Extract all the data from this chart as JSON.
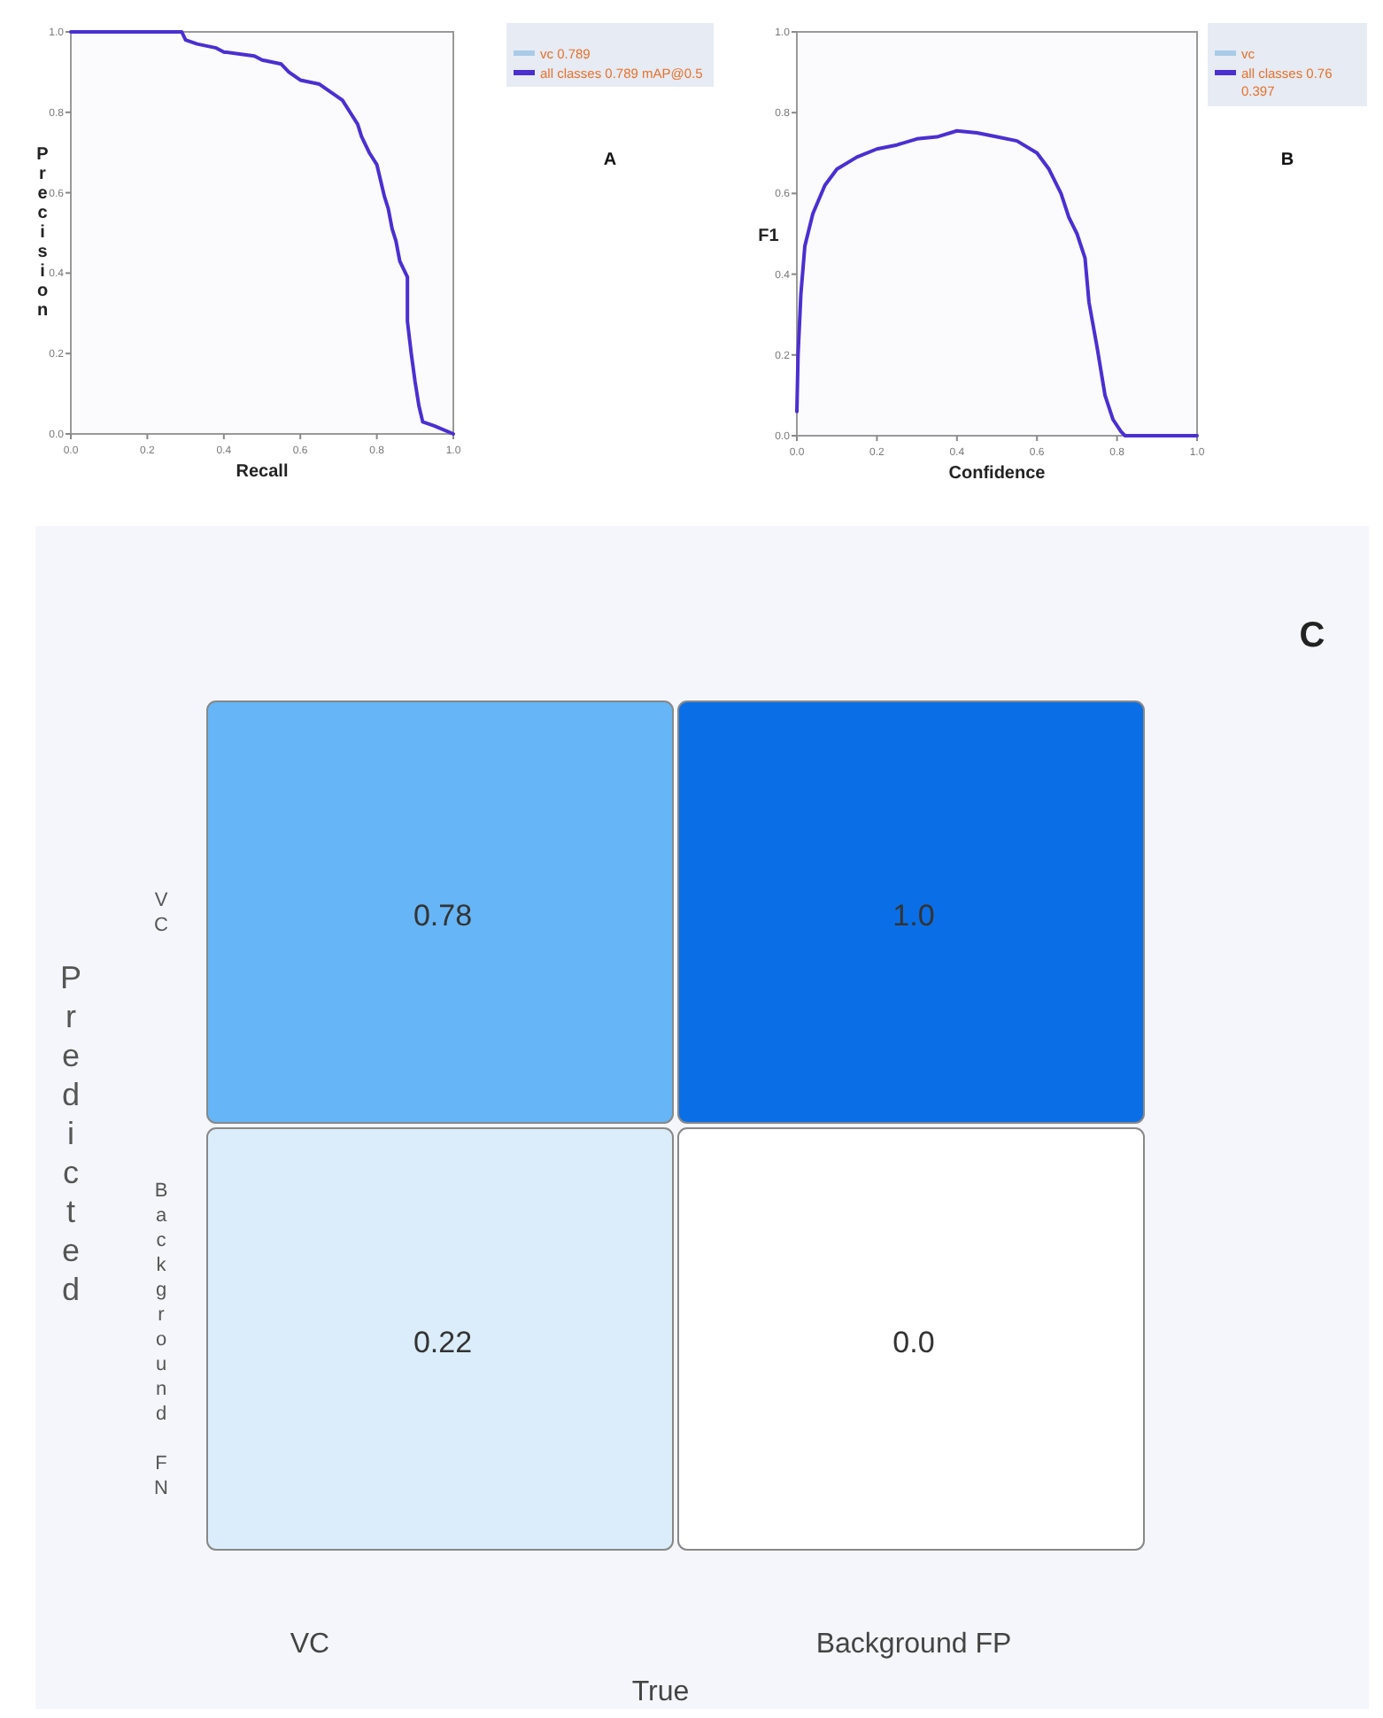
{
  "chart_data": [
    {
      "type": "line",
      "xlabel": "Recall",
      "ylabel": "Precision",
      "xlim": [
        0,
        1
      ],
      "ylim": [
        0,
        1
      ],
      "xticks": [
        {
          "value": 0,
          "label": "0.0"
        },
        {
          "value": 0.2,
          "label": "0.2"
        },
        {
          "value": 0.4,
          "label": "0.4"
        },
        {
          "value": 0.6,
          "label": "0.6"
        },
        {
          "value": 0.8,
          "label": "0.8"
        },
        {
          "value": 1,
          "label": "1.0"
        }
      ],
      "yticks": [
        {
          "value": 0,
          "label": "0.0"
        },
        {
          "value": 0.2,
          "label": "0.2"
        },
        {
          "value": 0.4,
          "label": "0.4"
        },
        {
          "value": 0.6,
          "label": "0.6"
        },
        {
          "value": 0.8,
          "label": "0.8"
        },
        {
          "value": 1,
          "label": "1.0"
        }
      ],
      "legend": "top right",
      "annotations": [
        "A"
      ],
      "x": [
        0,
        0.29,
        0.3,
        0.33,
        0.38,
        0.4,
        0.48,
        0.5,
        0.55,
        0.57,
        0.6,
        0.65,
        0.68,
        0.71,
        0.73,
        0.75,
        0.76,
        0.78,
        0.8,
        0.81,
        0.82,
        0.83,
        0.84,
        0.85,
        0.86,
        0.88,
        0.88,
        0.89,
        0.9,
        0.91,
        0.92,
        0.95,
        1
      ],
      "series": [
        {
          "name": "vc 0.789",
          "color": "#a9cbe8",
          "values": [
            null,
            null,
            null,
            null,
            null,
            null,
            null,
            null,
            null,
            null,
            null,
            null,
            null,
            null,
            null,
            null,
            null,
            null,
            null,
            null,
            null,
            null,
            null,
            null,
            null,
            null,
            null,
            null,
            null,
            null,
            null,
            null,
            null
          ]
        },
        {
          "name": "all classes 0.789 mAP@0.5",
          "color": "#4b2fd0",
          "values": [
            1,
            1,
            0.98,
            0.97,
            0.96,
            0.95,
            0.94,
            0.93,
            0.92,
            0.9,
            0.88,
            0.87,
            0.85,
            0.83,
            0.8,
            0.77,
            0.74,
            0.7,
            0.67,
            0.63,
            0.59,
            0.56,
            0.51,
            0.48,
            0.43,
            0.39,
            0.28,
            0.2,
            0.13,
            0.07,
            0.03,
            0.02,
            0
          ]
        }
      ]
    },
    {
      "type": "line",
      "xlabel": "Confidence",
      "ylabel": "F1",
      "xlim": [
        0,
        1
      ],
      "ylim": [
        0,
        1
      ],
      "xticks": [
        {
          "value": 0,
          "label": "0.0"
        },
        {
          "value": 0.2,
          "label": "0.2"
        },
        {
          "value": 0.4,
          "label": "0.4"
        },
        {
          "value": 0.6,
          "label": "0.6"
        },
        {
          "value": 0.8,
          "label": "0.8"
        },
        {
          "value": 1,
          "label": "1.0"
        }
      ],
      "yticks": [
        {
          "value": 0,
          "label": "0.0"
        },
        {
          "value": 0.2,
          "label": "0.2"
        },
        {
          "value": 0.4,
          "label": "0.4"
        },
        {
          "value": 0.6,
          "label": "0.6"
        },
        {
          "value": 0.8,
          "label": "0.8"
        },
        {
          "value": 1,
          "label": "1.0"
        }
      ],
      "legend": "top right",
      "annotations": [
        "B"
      ],
      "x": [
        0,
        0.003,
        0.01,
        0.02,
        0.04,
        0.07,
        0.1,
        0.15,
        0.2,
        0.25,
        0.3,
        0.35,
        0.4,
        0.45,
        0.5,
        0.55,
        0.6,
        0.63,
        0.66,
        0.68,
        0.7,
        0.72,
        0.73,
        0.75,
        0.77,
        0.79,
        0.81,
        0.82,
        1
      ],
      "series": [
        {
          "name": "vc",
          "color": "#a9cbe8",
          "values": [
            null,
            null,
            null,
            null,
            null,
            null,
            null,
            null,
            null,
            null,
            null,
            null,
            null,
            null,
            null,
            null,
            null,
            null,
            null,
            null,
            null,
            null,
            null,
            null,
            null,
            null,
            null,
            null,
            null
          ]
        },
        {
          "name": "all classes 0.76 0.397",
          "color": "#4b2fd0",
          "values": [
            0.06,
            0.2,
            0.35,
            0.47,
            0.55,
            0.62,
            0.66,
            0.69,
            0.71,
            0.72,
            0.735,
            0.74,
            0.755,
            0.75,
            0.74,
            0.73,
            0.7,
            0.66,
            0.6,
            0.54,
            0.5,
            0.44,
            0.33,
            0.22,
            0.1,
            0.04,
            0.01,
            0,
            0
          ]
        }
      ]
    },
    {
      "type": "heatmap",
      "xlabel": "True",
      "ylabel": "Predicted",
      "annotations": [
        "C"
      ],
      "categories": [
        "VC",
        "Background FP"
      ],
      "y_categories": [
        "VC",
        "Background FN"
      ],
      "cells": [
        [
          0.78,
          1.0
        ],
        [
          0.22,
          0.0
        ]
      ],
      "cell_labels": [
        [
          "0.78",
          "1.0"
        ],
        [
          "0.22",
          "0.0"
        ]
      ]
    }
  ]
}
